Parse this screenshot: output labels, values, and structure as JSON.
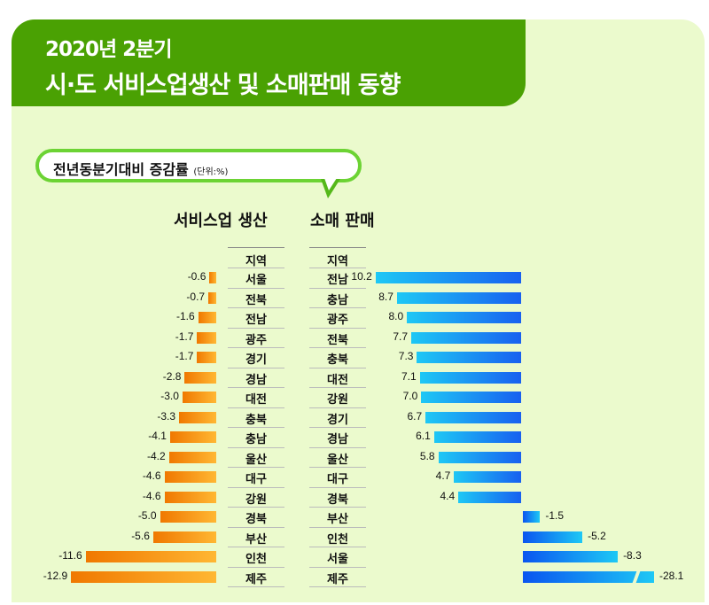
{
  "header": {
    "line1": "2020년 2분기",
    "line2": "시·도 서비스업생산 및 소매판매 동향"
  },
  "subtitle": {
    "text": "전년동분기대비 증감률",
    "unit": "(단위:%)"
  },
  "colors": {
    "header": "#4aa103",
    "panel": "#ebfacd",
    "services": "#f07800",
    "retail": "#1860f0"
  },
  "chart_data": [
    {
      "type": "bar",
      "title": "서비스업 생산",
      "region_header": "지역",
      "unit": "%",
      "categories": [
        "서울",
        "전북",
        "전남",
        "광주",
        "경기",
        "경남",
        "대전",
        "충북",
        "충남",
        "울산",
        "대구",
        "강원",
        "경북",
        "부산",
        "인천",
        "제주"
      ],
      "values": [
        -0.6,
        -0.7,
        -1.6,
        -1.7,
        -1.7,
        -2.8,
        -3.0,
        -3.3,
        -4.1,
        -4.2,
        -4.6,
        -4.6,
        -5.0,
        -5.6,
        -11.6,
        -12.9
      ],
      "labels": [
        "-0.6",
        "-0.7",
        "-1.6",
        "-1.7",
        "-1.7",
        "-2.8",
        "-3.0",
        "-3.3",
        "-4.1",
        "-4.2",
        "-4.6",
        "-4.6",
        "-5.0",
        "-5.6",
        "-11.6",
        "-12.9"
      ]
    },
    {
      "type": "bar",
      "title": "소매 판매",
      "region_header": "지역",
      "unit": "%",
      "categories": [
        "전남",
        "충남",
        "광주",
        "전북",
        "충북",
        "대전",
        "강원",
        "경기",
        "경남",
        "울산",
        "대구",
        "경북",
        "부산",
        "인천",
        "서울",
        "제주"
      ],
      "values": [
        10.2,
        8.7,
        8.0,
        7.7,
        7.3,
        7.1,
        7.0,
        6.7,
        6.1,
        5.8,
        4.7,
        4.4,
        -1.5,
        -5.2,
        -8.3,
        -28.1
      ],
      "labels": [
        "10.2",
        "8.7",
        "8.0",
        "7.7",
        "7.3",
        "7.1",
        "7.0",
        "6.7",
        "6.1",
        "5.8",
        "4.7",
        "4.4",
        "-1.5",
        "-5.2",
        "-8.3",
        "-28.1"
      ],
      "axis_break": "제주"
    }
  ]
}
